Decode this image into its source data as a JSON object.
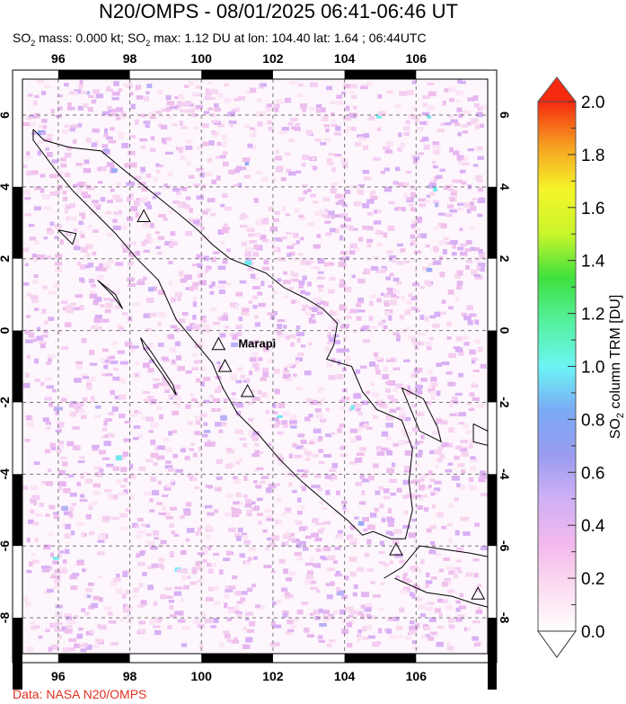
{
  "header": {
    "title": "N20/OMPS - 08/01/2025 06:41-06:46 UT",
    "subtitle_parts": [
      "SO",
      "2",
      " mass: 0.000 kt; SO",
      "2",
      " max: 1.12 DU at lon: 104.40 lat: 1.64 ; 06:44UTC"
    ]
  },
  "map": {
    "lon_range": [
      95.0,
      108.0
    ],
    "lat_range": [
      -9.0,
      7.0
    ],
    "lon_ticks": [
      "96",
      "98",
      "100",
      "102",
      "104",
      "106"
    ],
    "lat_ticks": [
      "6",
      "4",
      "2",
      "0",
      "-2",
      "-4",
      "-6",
      "-8"
    ],
    "grid": true,
    "volcanoes": [
      {
        "lon": 98.39,
        "lat": 3.18,
        "label": ""
      },
      {
        "lon": 100.48,
        "lat": -0.38,
        "label": "Marapi"
      },
      {
        "lon": 100.66,
        "lat": -0.99,
        "label": ""
      },
      {
        "lon": 101.29,
        "lat": -1.69,
        "label": ""
      },
      {
        "lon": 105.44,
        "lat": -6.1,
        "label": ""
      },
      {
        "lon": 107.73,
        "lat": -7.33,
        "label": ""
      }
    ]
  },
  "colorbar": {
    "label_main": "SO",
    "label_sub": "2",
    "label_rest": " column TRM [DU]",
    "min": 0.0,
    "max": 2.0,
    "tick_labels": [
      "0.0",
      "0.2",
      "0.4",
      "0.6",
      "0.8",
      "1.0",
      "1.2",
      "1.4",
      "1.6",
      "1.8",
      "2.0"
    ],
    "colors": [
      "#ffffff",
      "#fbdcf0",
      "#f2b8ec",
      "#cfb0f5",
      "#9a9cf0",
      "#7aaaf5",
      "#6cf5f5",
      "#55f0a0",
      "#3ee03e",
      "#c8f52a",
      "#f5f52a",
      "#f5a020",
      "#f52a10"
    ],
    "over_color": "#f52a10",
    "under_color": "#ffffff"
  },
  "footer": {
    "credit": "Data: NASA N20/OMPS"
  }
}
